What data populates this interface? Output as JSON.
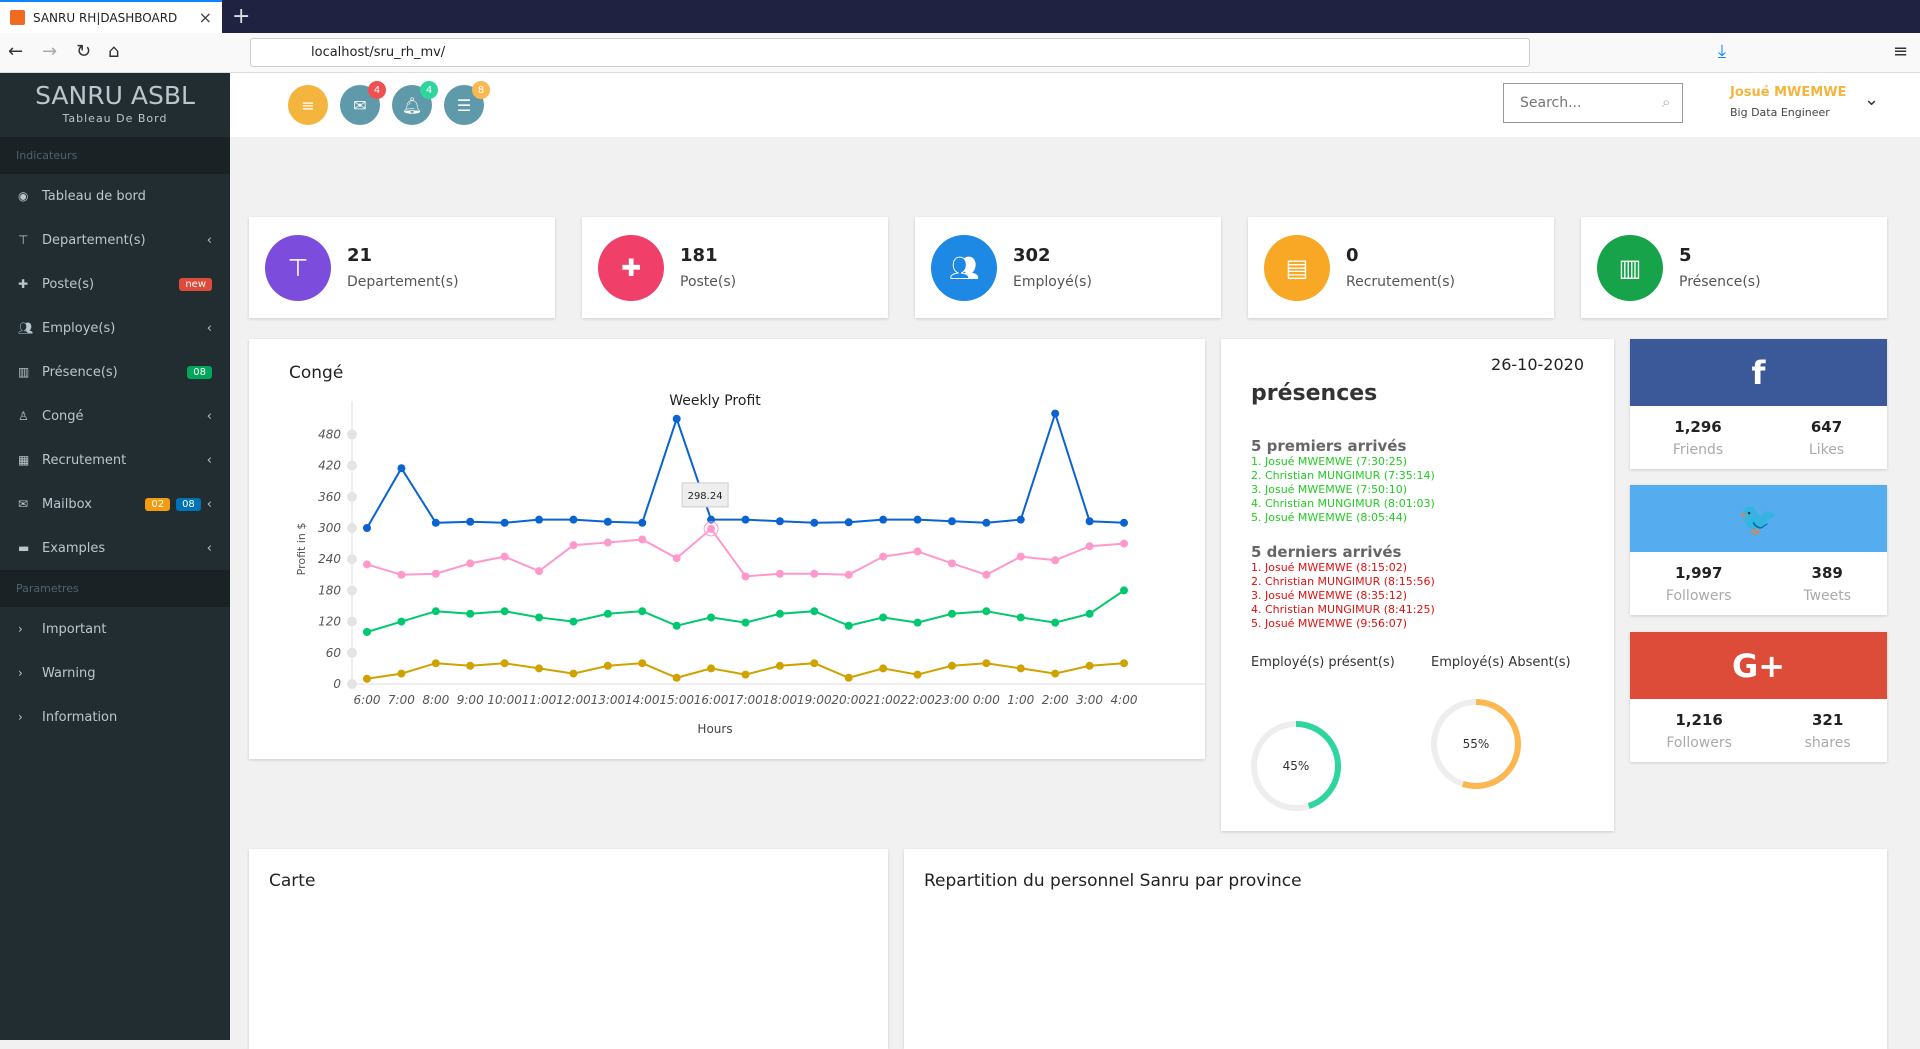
{
  "browser": {
    "tab_title": "SANRU RH|DASHBOARD",
    "url": "localhost/sru_rh_mv/"
  },
  "brand": {
    "title": "SANRU ASBL",
    "subtitle": "Tableau De Bord"
  },
  "sidebar": {
    "section1": "Indicateurs",
    "items": [
      {
        "label": "Tableau de bord",
        "icon": "dashboard-icon"
      },
      {
        "label": "Departement(s)",
        "icon": "sitemap-icon",
        "chevron": true
      },
      {
        "label": "Poste(s)",
        "icon": "puzzle-icon",
        "badges": [
          {
            "text": "new",
            "color": "#dd4b39"
          }
        ]
      },
      {
        "label": "Employe(s)",
        "icon": "users-icon",
        "chevron": true
      },
      {
        "label": "Présence(s)",
        "icon": "barcode-icon",
        "badges": [
          {
            "text": "08",
            "color": "#00a65a"
          }
        ]
      },
      {
        "label": "Congé",
        "icon": "person-icon",
        "chevron": true
      },
      {
        "label": "Recrutement",
        "icon": "table-icon",
        "chevron": true
      },
      {
        "label": "Mailbox",
        "icon": "envelope-icon",
        "badges": [
          {
            "text": "02",
            "color": "#f39c12"
          },
          {
            "text": "08",
            "color": "#0073b7"
          }
        ],
        "chevron": true
      },
      {
        "label": "Examples",
        "icon": "folder-icon",
        "chevron": true
      }
    ],
    "section2": "Parametres",
    "params": [
      "Important",
      "Warning",
      "Information"
    ]
  },
  "header": {
    "mail_count": "4",
    "bell_count": "4",
    "tasks_count": "8",
    "search_placeholder": "Search...",
    "user_name": "Josué MWEMWE",
    "user_role": "Big Data Engineer"
  },
  "stats": [
    {
      "value": "21",
      "label": "Departement(s)",
      "color": "#7c4ddc",
      "icon": "sitemap-icon"
    },
    {
      "value": "181",
      "label": "Poste(s)",
      "color": "#f0406a",
      "icon": "puzzle-icon"
    },
    {
      "value": "302",
      "label": "Employé(s)",
      "color": "#1e88e5",
      "icon": "users-icon"
    },
    {
      "value": "0",
      "label": "Recrutement(s)",
      "color": "#f9a825",
      "icon": "newspaper-icon"
    },
    {
      "value": "5",
      "label": "Présence(s)",
      "color": "#16a34a",
      "icon": "barcode-icon"
    }
  ],
  "conge": {
    "title": "Congé"
  },
  "chart_data": {
    "type": "line",
    "title": "Weekly Profit",
    "xlabel": "Hours",
    "ylabel": "Profit in $",
    "categories": [
      "6:00",
      "7:00",
      "8:00",
      "9:00",
      "10:00",
      "11:00",
      "12:00",
      "13:00",
      "14:00",
      "15:00",
      "16:00",
      "17:00",
      "18:00",
      "19:00",
      "20:00",
      "21:00",
      "22:00",
      "23:00",
      "0:00",
      "1:00",
      "2:00",
      "3:00",
      "4:00"
    ],
    "yticks": [
      0,
      60,
      120,
      180,
      240,
      300,
      360,
      420,
      480
    ],
    "ylim": [
      0,
      525
    ],
    "grid": false,
    "tooltip": {
      "series": 1,
      "index": 10,
      "text": "298.24"
    },
    "series": [
      {
        "color": "#0a63d1",
        "values": [
          300,
          415,
          310,
          312,
          310,
          316,
          316,
          312,
          310,
          510,
          316,
          316,
          313,
          310,
          311,
          316,
          316,
          313,
          310,
          316,
          520,
          313,
          310
        ]
      },
      {
        "color": "#ff99cc",
        "values": [
          230,
          210,
          212,
          232,
          245,
          217,
          267,
          272,
          278,
          242,
          298.24,
          207,
          212,
          212,
          210,
          245,
          255,
          232,
          210,
          245,
          238,
          265,
          270
        ]
      },
      {
        "color": "#00c86e",
        "values": [
          100,
          120,
          140,
          135,
          140,
          128,
          120,
          135,
          140,
          112,
          128,
          118,
          135,
          140,
          112,
          128,
          118,
          135,
          140,
          128,
          118,
          135,
          180
        ]
      },
      {
        "color": "#cfa200",
        "values": [
          10,
          20,
          40,
          35,
          40,
          30,
          20,
          35,
          40,
          12,
          30,
          18,
          35,
          40,
          12,
          30,
          18,
          35,
          40,
          30,
          20,
          35,
          40
        ]
      }
    ]
  },
  "presences": {
    "date": "26-10-2020",
    "title": "présences",
    "first_title": "5 premiers arrivés",
    "first": [
      "1. Josué MWEMWE (7:30:25)",
      "2. Christian MUNGIMUR (7:35:14)",
      "3. Josué MWEMWE (7:50:10)",
      "4. Christian MUNGIMUR (8:01:03)",
      "5. Josué MWEMWE (8:05:44)"
    ],
    "last_title": "5 derniers arrivés",
    "last": [
      "1. Josué MWEMWE (8:15:02)",
      "2. Christian MUNGIMUR (8:15:56)",
      "3. Josué MWEMWE (8:35:12)",
      "4. Christian MUNGIMUR (8:41:25)",
      "5. Josué MWEMWE (9:56:07)"
    ],
    "present_label": "Employé(s) présent(s)",
    "present_pct": 45,
    "present_text": "45%",
    "present_color": "#2ed59d",
    "absent_label": "Employé(s) Absent(s)",
    "absent_pct": 55,
    "absent_text": "55%",
    "absent_color": "#fbb850"
  },
  "social": [
    {
      "icon": "facebook-icon",
      "glyph": "f",
      "color": "#3b5998",
      "a": "1,296",
      "al": "Friends",
      "b": "647",
      "bl": "Likes"
    },
    {
      "icon": "twitter-icon",
      "glyph": "🐦",
      "color": "#55acee",
      "a": "1,997",
      "al": "Followers",
      "b": "389",
      "bl": "Tweets"
    },
    {
      "icon": "google-plus-icon",
      "glyph": "G+",
      "color": "#dd4b39",
      "a": "1,216",
      "al": "Followers",
      "b": "321",
      "bl": "shares"
    }
  ],
  "bottom": {
    "map_title": "Carte",
    "rep_title": "Repartition du personnel Sanru par province"
  }
}
